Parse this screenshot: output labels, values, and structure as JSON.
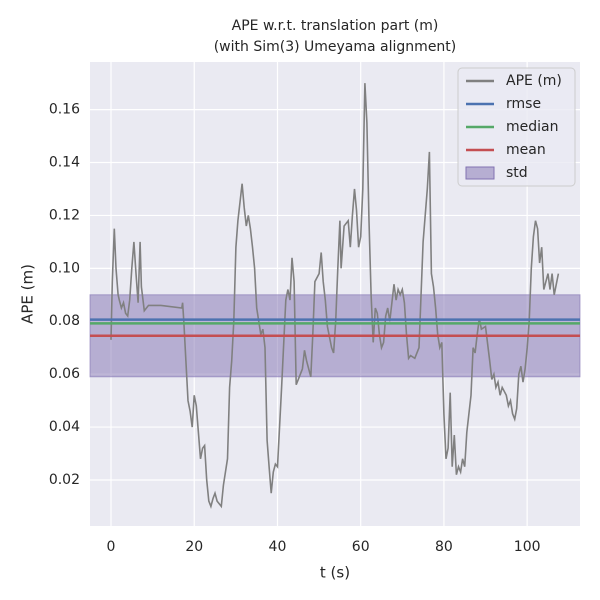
{
  "chart_data": {
    "type": "line",
    "title": "APE w.r.t. translation part (m)",
    "subtitle": "(with Sim(3) Umeyama alignment)",
    "x_label": "t (s)",
    "y_label": "APE (m)",
    "xlim": [
      -5.05,
      112.7
    ],
    "ylim": [
      0.0026,
      0.178
    ],
    "xticks": [
      0,
      20,
      40,
      60,
      80,
      100
    ],
    "yticks": [
      0.02,
      0.04,
      0.06,
      0.08,
      {
        "value": 0.1,
        "label": "0.10"
      },
      0.12,
      0.14,
      0.16
    ],
    "grid": true,
    "legend": "upper right",
    "x": [
      0,
      0.3,
      0.8,
      1.2,
      1.7,
      2,
      2.5,
      3,
      3.5,
      4,
      4.5,
      5,
      5.5,
      6,
      6.5,
      7,
      7.3,
      8,
      9,
      12,
      17,
      17.2,
      17.5,
      18,
      18.5,
      19,
      19.5,
      20,
      20.5,
      21,
      21.5,
      22,
      22.5,
      23,
      23.5,
      24,
      24.5,
      25,
      25.5,
      26,
      26.5,
      27,
      28,
      28.5,
      29,
      29.5,
      30,
      30.5,
      31,
      31.5,
      32,
      32.5,
      33,
      33.5,
      34,
      34.5,
      35,
      36,
      36.5,
      37,
      37.5,
      38,
      38.5,
      39,
      39.5,
      40,
      41,
      42,
      42.5,
      43,
      43.5,
      44,
      44.5,
      45,
      46,
      46.5,
      47,
      48,
      48.5,
      49,
      50,
      50.5,
      51,
      51.5,
      52,
      53,
      53.5,
      54,
      54.5,
      55,
      55.3,
      56,
      57,
      57.5,
      58,
      58.5,
      59,
      59.5,
      60,
      60.5,
      61,
      61.5,
      62,
      62.5,
      63,
      63.5,
      64,
      64.5,
      65,
      65.5,
      66,
      66.5,
      67,
      68,
      68.5,
      69,
      69.5,
      70,
      70.5,
      71,
      71.5,
      72,
      73,
      74,
      75,
      76,
      76.5,
      77,
      77.5,
      78,
      78.5,
      79,
      79.5,
      80,
      80.5,
      81,
      81.5,
      82,
      82.5,
      83,
      83.5,
      84,
      84.5,
      85,
      85.5,
      86,
      86.5,
      87,
      87.5,
      88,
      88.5,
      89,
      90,
      91,
      91.5,
      92,
      92.5,
      93,
      93.5,
      94,
      95,
      95.5,
      96,
      96.5,
      97,
      97.5,
      98,
      98.5,
      99,
      99.5,
      100,
      100.5,
      101,
      101.5,
      102,
      102.5,
      103,
      103.5,
      104,
      104.5,
      105,
      105.5,
      106,
      106.5,
      107,
      107.5
    ],
    "series": [
      {
        "name": "APE (m)",
        "color": "#808080",
        "values": [
          0.073,
          0.095,
          0.115,
          0.1,
          0.09,
          0.088,
          0.085,
          0.087,
          0.083,
          0.082,
          0.088,
          0.1,
          0.11,
          0.098,
          0.087,
          0.11,
          0.093,
          0.084,
          0.086,
          0.086,
          0.085,
          0.087,
          0.08,
          0.065,
          0.05,
          0.046,
          0.04,
          0.052,
          0.048,
          0.038,
          0.028,
          0.032,
          0.033,
          0.02,
          0.012,
          0.01,
          0.013,
          0.015,
          0.012,
          0.011,
          0.01,
          0.018,
          0.028,
          0.055,
          0.065,
          0.08,
          0.108,
          0.118,
          0.125,
          0.132,
          0.123,
          0.116,
          0.12,
          0.115,
          0.108,
          0.1,
          0.085,
          0.075,
          0.077,
          0.07,
          0.035,
          0.025,
          0.015,
          0.023,
          0.026,
          0.025,
          0.055,
          0.088,
          0.092,
          0.088,
          0.104,
          0.095,
          0.056,
          0.058,
          0.062,
          0.069,
          0.065,
          0.059,
          0.075,
          0.095,
          0.098,
          0.106,
          0.095,
          0.088,
          0.078,
          0.07,
          0.068,
          0.08,
          0.1,
          0.118,
          0.1,
          0.116,
          0.118,
          0.108,
          0.12,
          0.13,
          0.122,
          0.108,
          0.112,
          0.13,
          0.17,
          0.155,
          0.118,
          0.09,
          0.072,
          0.085,
          0.083,
          0.075,
          0.07,
          0.072,
          0.082,
          0.085,
          0.08,
          0.094,
          0.088,
          0.092,
          0.09,
          0.092,
          0.087,
          0.075,
          0.066,
          0.067,
          0.066,
          0.07,
          0.11,
          0.13,
          0.144,
          0.098,
          0.093,
          0.085,
          0.075,
          0.07,
          0.072,
          0.045,
          0.028,
          0.032,
          0.053,
          0.025,
          0.037,
          0.022,
          0.025,
          0.023,
          0.028,
          0.025,
          0.038,
          0.045,
          0.052,
          0.07,
          0.068,
          0.075,
          0.081,
          0.077,
          0.078,
          0.065,
          0.058,
          0.06,
          0.055,
          0.057,
          0.052,
          0.055,
          0.052,
          0.048,
          0.05,
          0.045,
          0.043,
          0.047,
          0.06,
          0.063,
          0.057,
          0.062,
          0.07,
          0.08,
          0.1,
          0.112,
          0.118,
          0.115,
          0.102,
          0.108,
          0.092,
          0.095,
          0.098,
          0.092,
          0.098,
          0.09,
          0.094,
          0.098
        ]
      }
    ],
    "stats": [
      {
        "name": "rmse",
        "color": "#4c72b0",
        "value": 0.0806
      },
      {
        "name": "median",
        "color": "#55a868",
        "value": 0.0792
      },
      {
        "name": "mean",
        "color": "#c44e52",
        "value": 0.0745
      },
      {
        "name": "std",
        "color": "#8172b2",
        "value": 0.0155
      }
    ]
  }
}
